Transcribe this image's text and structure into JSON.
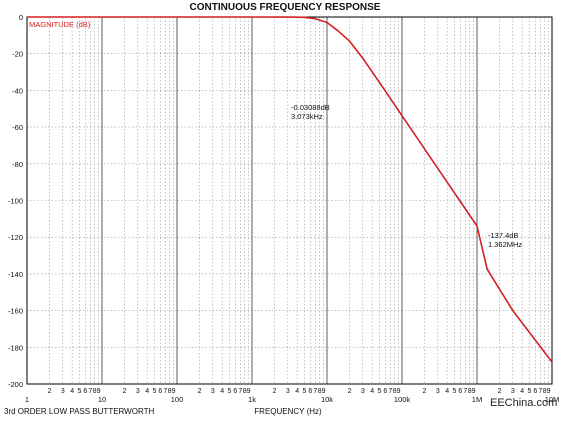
{
  "chart_data": {
    "type": "line",
    "title": "CONTINUOUS FREQUENCY RESPONSE",
    "xlabel": "FREQUENCY (Hz)",
    "ylabel": "MAGNITUDE (dB)",
    "footer_left": "3rd ORDER LOW PASS BUTTERWORTH",
    "watermark": "EEChina.com",
    "x_scale": "log",
    "xlim": [
      1,
      10000000
    ],
    "ylim": [
      -200,
      0
    ],
    "grid": true,
    "x_decade_labels": [
      "1",
      "10",
      "100",
      "1k",
      "10k",
      "100k",
      "1M",
      "10M"
    ],
    "x_minor_digits": [
      "2",
      "3",
      "4",
      "5",
      "6",
      "7",
      "8",
      "9"
    ],
    "y_ticks": [
      0,
      -20,
      -40,
      -60,
      -80,
      -100,
      -120,
      -140,
      -160,
      -180,
      -200
    ],
    "series": [
      {
        "name": "MAGNITUDE (dB)",
        "color": "#d42020",
        "points": [
          [
            1,
            0
          ],
          [
            1000,
            0
          ],
          [
            3073,
            -0.03088
          ],
          [
            5000,
            -0.17
          ],
          [
            7000,
            -0.9
          ],
          [
            10000,
            -3.0
          ],
          [
            14000,
            -7.5
          ],
          [
            20000,
            -13.2
          ],
          [
            30000,
            -22.5
          ],
          [
            50000,
            -35.6
          ],
          [
            100000,
            -53.8
          ],
          [
            300000,
            -82.5
          ],
          [
            1000000,
            -113.9
          ],
          [
            1362000,
            -137.4
          ],
          [
            3000000,
            -160.0
          ],
          [
            10000000,
            -188.0
          ]
        ]
      }
    ],
    "annotations": [
      {
        "lines": [
          "-0.03088dB",
          "3.073kHz"
        ]
      },
      {
        "lines": [
          "-137.4dB",
          "1.362MHz"
        ]
      }
    ]
  }
}
